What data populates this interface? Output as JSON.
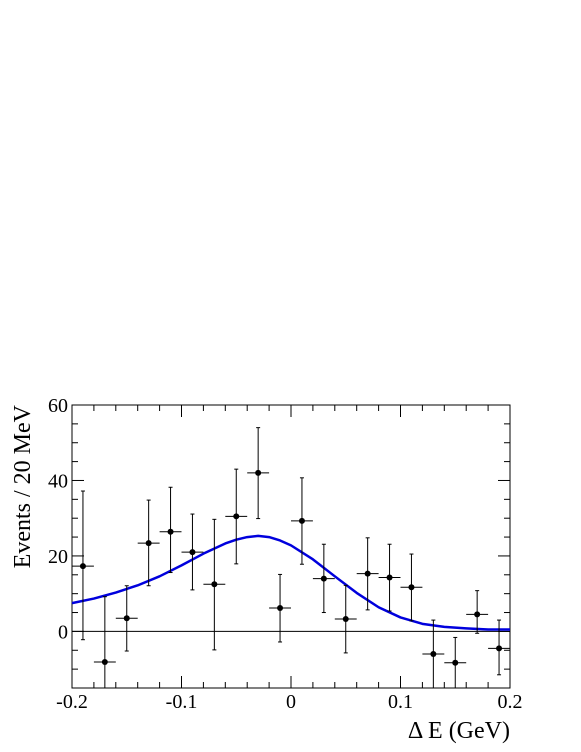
{
  "chart_data": {
    "type": "scatter",
    "xlabel": "Δ E (GeV)",
    "ylabel": "Events / 20 MeV",
    "xlim": [
      -0.2,
      0.2
    ],
    "ylim": [
      -15,
      60
    ],
    "x_ticks": [
      -0.2,
      -0.1,
      0,
      0.1,
      0.2
    ],
    "x_tick_labels": [
      "-0.2",
      "-0.1",
      "0",
      "0.1",
      "0.2"
    ],
    "y_ticks": [
      0,
      20,
      40,
      60
    ],
    "y_tick_labels": [
      "0",
      "20",
      "40",
      "60"
    ],
    "grid": false,
    "zero_line": 0,
    "bin_half_width": 0.01,
    "points": [
      {
        "x": -0.19,
        "y": 17.3,
        "err_low": 19.5,
        "err_high": 19.9
      },
      {
        "x": -0.17,
        "y": -8.1,
        "err_low": 7.0,
        "err_high": 17.3
      },
      {
        "x": -0.15,
        "y": 3.5,
        "err_low": 8.7,
        "err_high": 8.6
      },
      {
        "x": -0.13,
        "y": 23.4,
        "err_low": 11.3,
        "err_high": 11.4
      },
      {
        "x": -0.11,
        "y": 26.4,
        "err_low": 10.8,
        "err_high": 11.8
      },
      {
        "x": -0.09,
        "y": 21.0,
        "err_low": 10.0,
        "err_high": 10.1
      },
      {
        "x": -0.07,
        "y": 12.5,
        "err_low": 17.4,
        "err_high": 17.2
      },
      {
        "x": -0.05,
        "y": 30.5,
        "err_low": 12.6,
        "err_high": 12.5
      },
      {
        "x": -0.03,
        "y": 42.0,
        "err_low": 12.1,
        "err_high": 12.0
      },
      {
        "x": -0.01,
        "y": 6.2,
        "err_low": 9.0,
        "err_high": 8.9
      },
      {
        "x": 0.01,
        "y": 29.3,
        "err_low": 11.5,
        "err_high": 11.4
      },
      {
        "x": 0.03,
        "y": 14.0,
        "err_low": 9.0,
        "err_high": 9.1
      },
      {
        "x": 0.05,
        "y": 3.3,
        "err_low": 9.0,
        "err_high": 8.9
      },
      {
        "x": 0.07,
        "y": 15.3,
        "err_low": 9.6,
        "err_high": 9.5
      },
      {
        "x": 0.09,
        "y": 14.3,
        "err_low": 8.9,
        "err_high": 8.8
      },
      {
        "x": 0.11,
        "y": 11.7,
        "err_low": 8.9,
        "err_high": 8.8
      },
      {
        "x": 0.13,
        "y": -6.0,
        "err_low": 9.0,
        "err_high": 9.0
      },
      {
        "x": 0.15,
        "y": -8.3,
        "err_low": 6.7,
        "err_high": 6.7
      },
      {
        "x": 0.17,
        "y": 4.5,
        "err_low": 5.0,
        "err_high": 6.3
      },
      {
        "x": 0.19,
        "y": -4.5,
        "err_low": 7.0,
        "err_high": 7.5
      }
    ],
    "fit_curve": {
      "color": "#0000dd",
      "x": [
        -0.2,
        -0.18,
        -0.16,
        -0.14,
        -0.12,
        -0.1,
        -0.08,
        -0.06,
        -0.05,
        -0.04,
        -0.03,
        -0.02,
        -0.01,
        0.0,
        0.02,
        0.04,
        0.06,
        0.08,
        0.1,
        0.12,
        0.14,
        0.16,
        0.18,
        0.2
      ],
      "y": [
        7.5,
        8.7,
        10.3,
        12.2,
        14.6,
        17.5,
        20.6,
        23.3,
        24.3,
        25.0,
        25.3,
        25.0,
        24.1,
        22.8,
        19.1,
        14.6,
        10.2,
        6.4,
        3.7,
        2.0,
        1.2,
        0.8,
        0.5,
        0.5
      ]
    }
  }
}
